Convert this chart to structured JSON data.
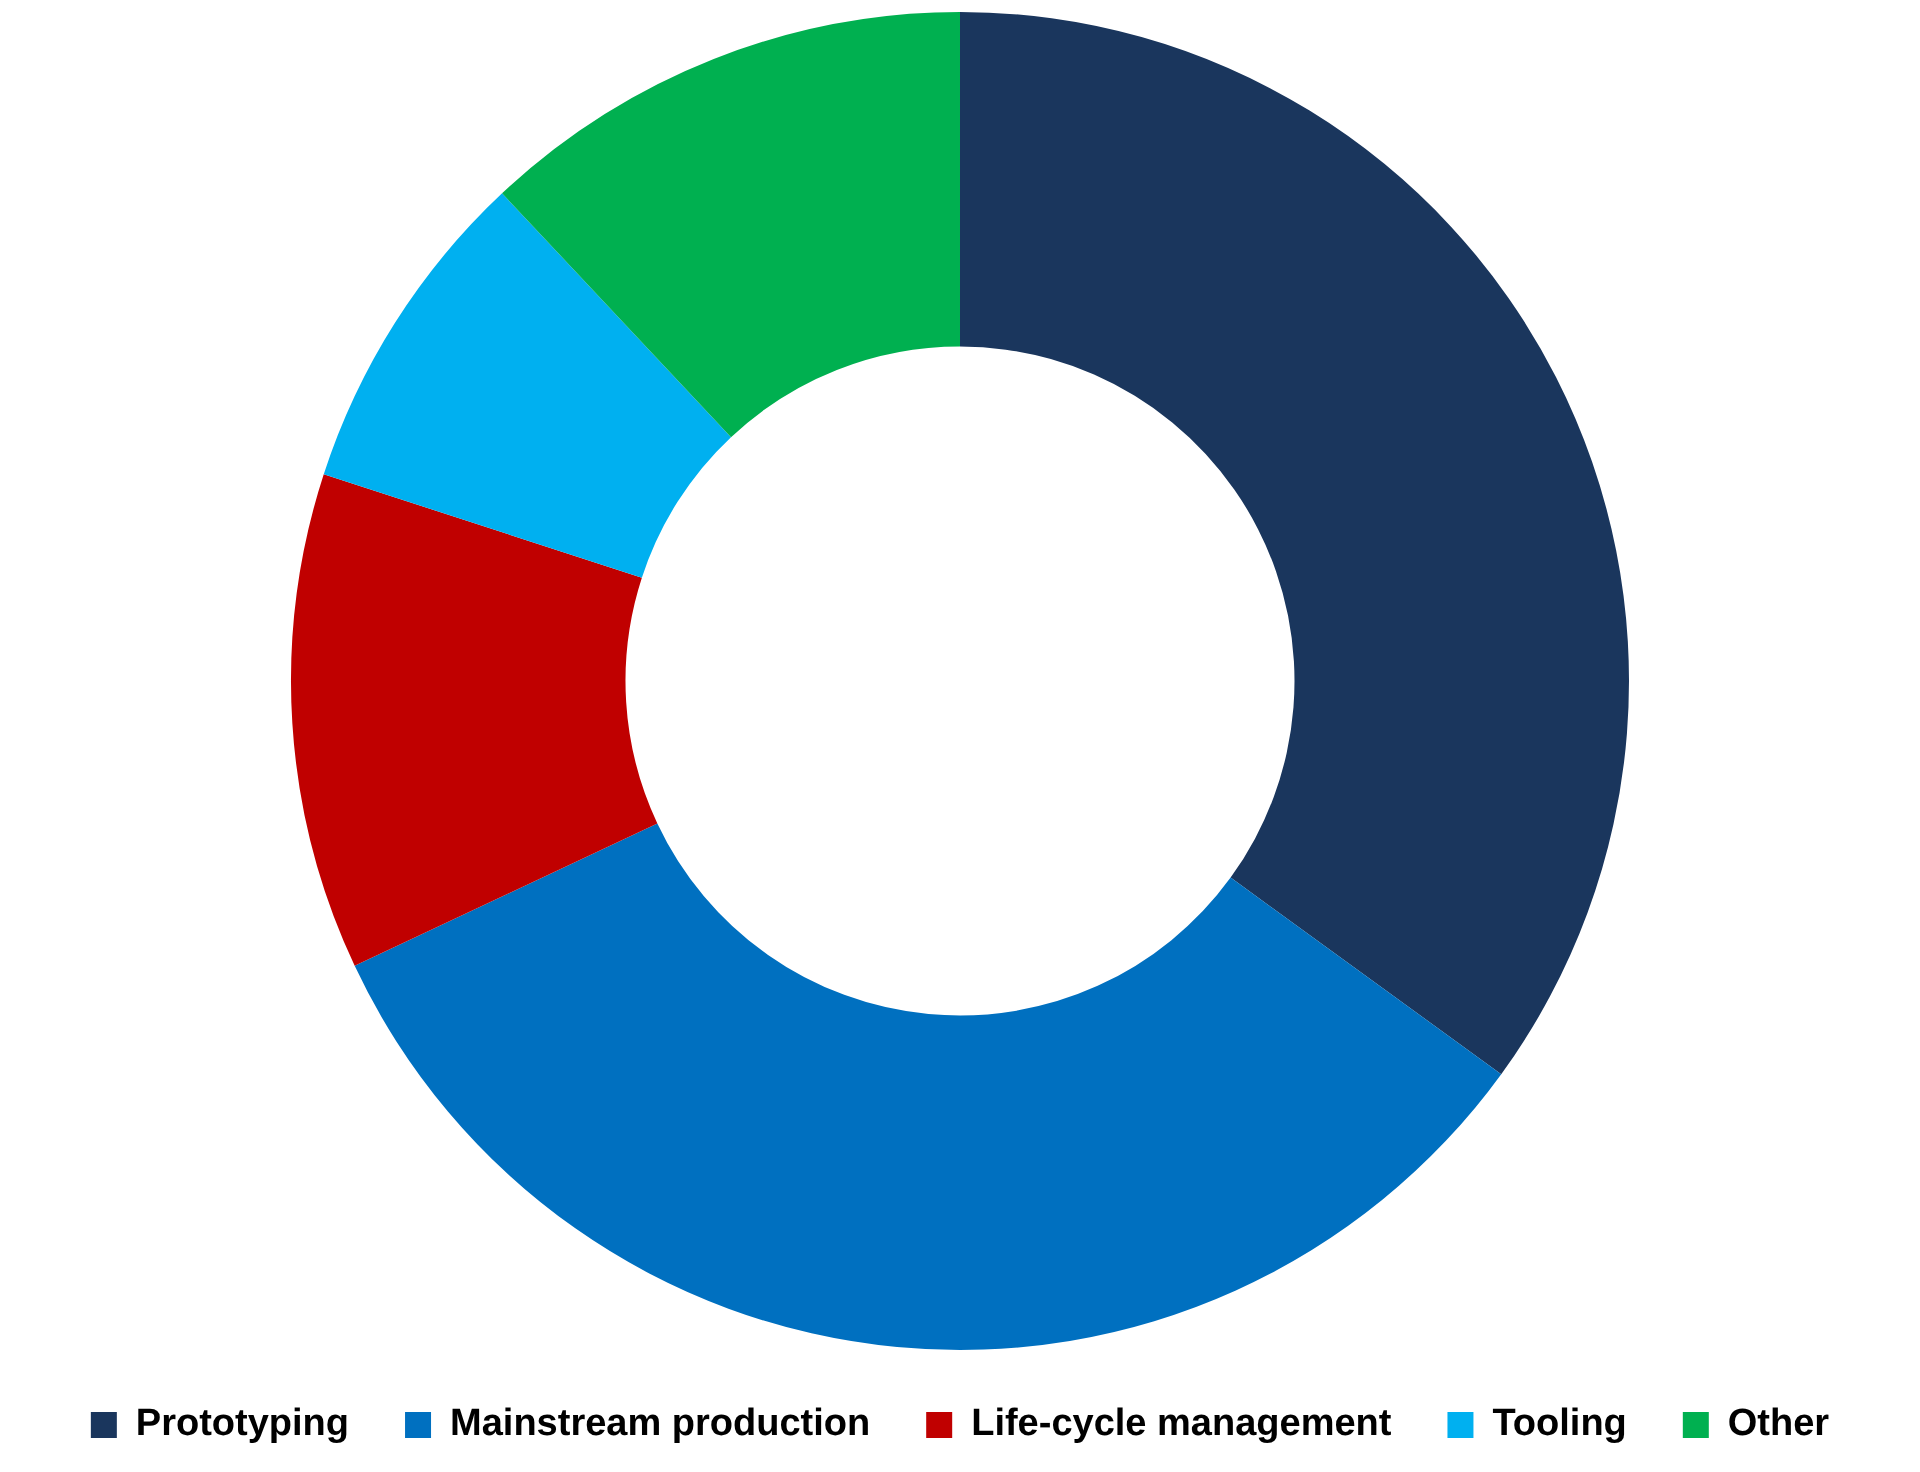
{
  "chart_data": {
    "type": "donut",
    "categories": [
      "Prototyping",
      "Mainstream production",
      "Life-cycle management",
      "Tooling",
      "Other"
    ],
    "values": [
      35,
      33,
      12,
      8,
      12
    ],
    "colors": [
      "#1a365d",
      "#0070c0",
      "#c00000",
      "#00b0f0",
      "#00b050"
    ],
    "legend": "bottom"
  }
}
